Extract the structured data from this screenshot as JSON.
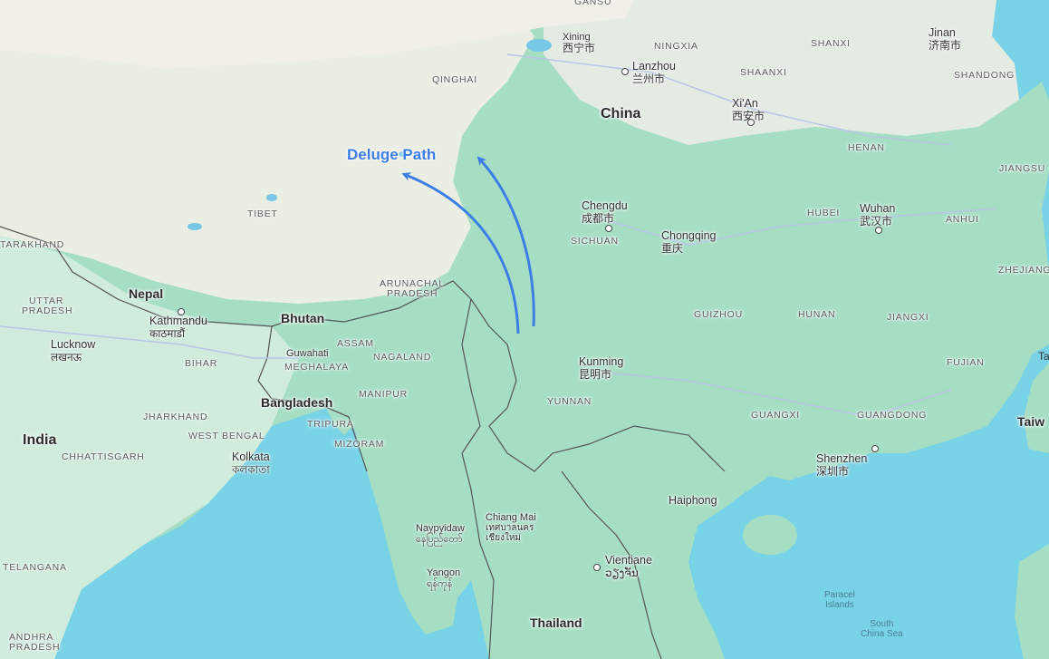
{
  "map": {
    "colors": {
      "ocean": "#79d3e6",
      "land": "#9fdcc0",
      "plateau": "#e9eee2",
      "india": "#c9ead8",
      "annotation": "#3d7ee6"
    },
    "annotation": {
      "title": "Deluge Path",
      "arrow_count": 2
    },
    "countries": {
      "china": "China",
      "nepal": "Nepal",
      "bhutan": "Bhutan",
      "bangladesh": "Bangladesh",
      "india": "India",
      "thailand": "Thailand",
      "taiwan": "Taiw"
    },
    "provinces": {
      "gansu": "GANSU",
      "ningxia": "NINGXIA",
      "shanxi": "SHANXI",
      "shandong": "SHANDONG",
      "qinghai": "QINGHAI",
      "shaanxi": "SHAANXI",
      "henan": "HENAN",
      "jiangsu": "JIANGSU",
      "tibet": "TIBET",
      "sichuan": "SICHUAN",
      "hubei": "HUBEI",
      "anhui": "ANHUI",
      "zhejiang": "ZHEJIANG",
      "uttarakhand": "TARAKHAND",
      "uttar_pradesh_1": "UTTAR",
      "uttar_pradesh_2": "PRADESH",
      "arunachal_1": "ARUNACHAL",
      "arunachal_2": "PRADESH",
      "guizhou": "GUIZHOU",
      "hunan": "HUNAN",
      "jiangxi": "JIANGXI",
      "assam": "ASSAM",
      "bihar": "BIHAR",
      "meghalaya": "MEGHALAYA",
      "nagaland": "NAGALAND",
      "fujian": "FUJIAN",
      "manipur": "MANIPUR",
      "yunnan": "YUNNAN",
      "jharkhand": "JHARKHAND",
      "tripura": "TRIPURA",
      "guangxi": "GUANGXI",
      "guangdong": "GUANGDONG",
      "west_bengal": "WEST BENGAL",
      "mizoram": "MIZORAM",
      "chhattisgarh": "CHHATTISGARH",
      "telangana": "TELANGANA",
      "andhra_1": "ANDHRA",
      "andhra_2": "PRADESH"
    },
    "cities": {
      "xining": {
        "name": "Xining",
        "alt": "西宁市"
      },
      "jinan": {
        "name": "Jinan",
        "alt": "济南市"
      },
      "lanzhou": {
        "name": "Lanzhou",
        "alt": "兰州市"
      },
      "xian": {
        "name": "Xi'An",
        "alt": "西安市"
      },
      "chengdu": {
        "name": "Chengdu",
        "alt": "成都市"
      },
      "wuhan": {
        "name": "Wuhan",
        "alt": "武汉市"
      },
      "chongqing": {
        "name": "Chongqing",
        "alt": "重庆"
      },
      "kathmandu": {
        "name": "Kathmandu",
        "alt": "काठमाडौं"
      },
      "lucknow": {
        "name": "Lucknow",
        "alt": "लखनऊ"
      },
      "guwahati": {
        "name": "Guwahati",
        "alt": ""
      },
      "kunming": {
        "name": "Kunming",
        "alt": "昆明市"
      },
      "kolkata": {
        "name": "Kolkata",
        "alt": "কলকাতা"
      },
      "shenzhen": {
        "name": "Shenzhen",
        "alt": "深圳市"
      },
      "haiphong": {
        "name": "Haiphong",
        "alt": ""
      },
      "chiang_mai": {
        "name": "Chiang Mai",
        "alt": "เทศบาลนคร เชียงใหม่"
      },
      "naypyidaw": {
        "name": "Naypyidaw",
        "alt": "နေပြည်တော်"
      },
      "vientiane": {
        "name": "Vientiane",
        "alt": "ວຽງຈັນ"
      },
      "yangon": {
        "name": "Yangon",
        "alt": "ရန်ကုန်"
      }
    },
    "water": {
      "paracel_1": "Paracel",
      "paracel_2": "Islands",
      "south_china_sea_1": "South",
      "south_china_sea_2": "China Sea",
      "taiwan_edge": "Ta"
    }
  }
}
